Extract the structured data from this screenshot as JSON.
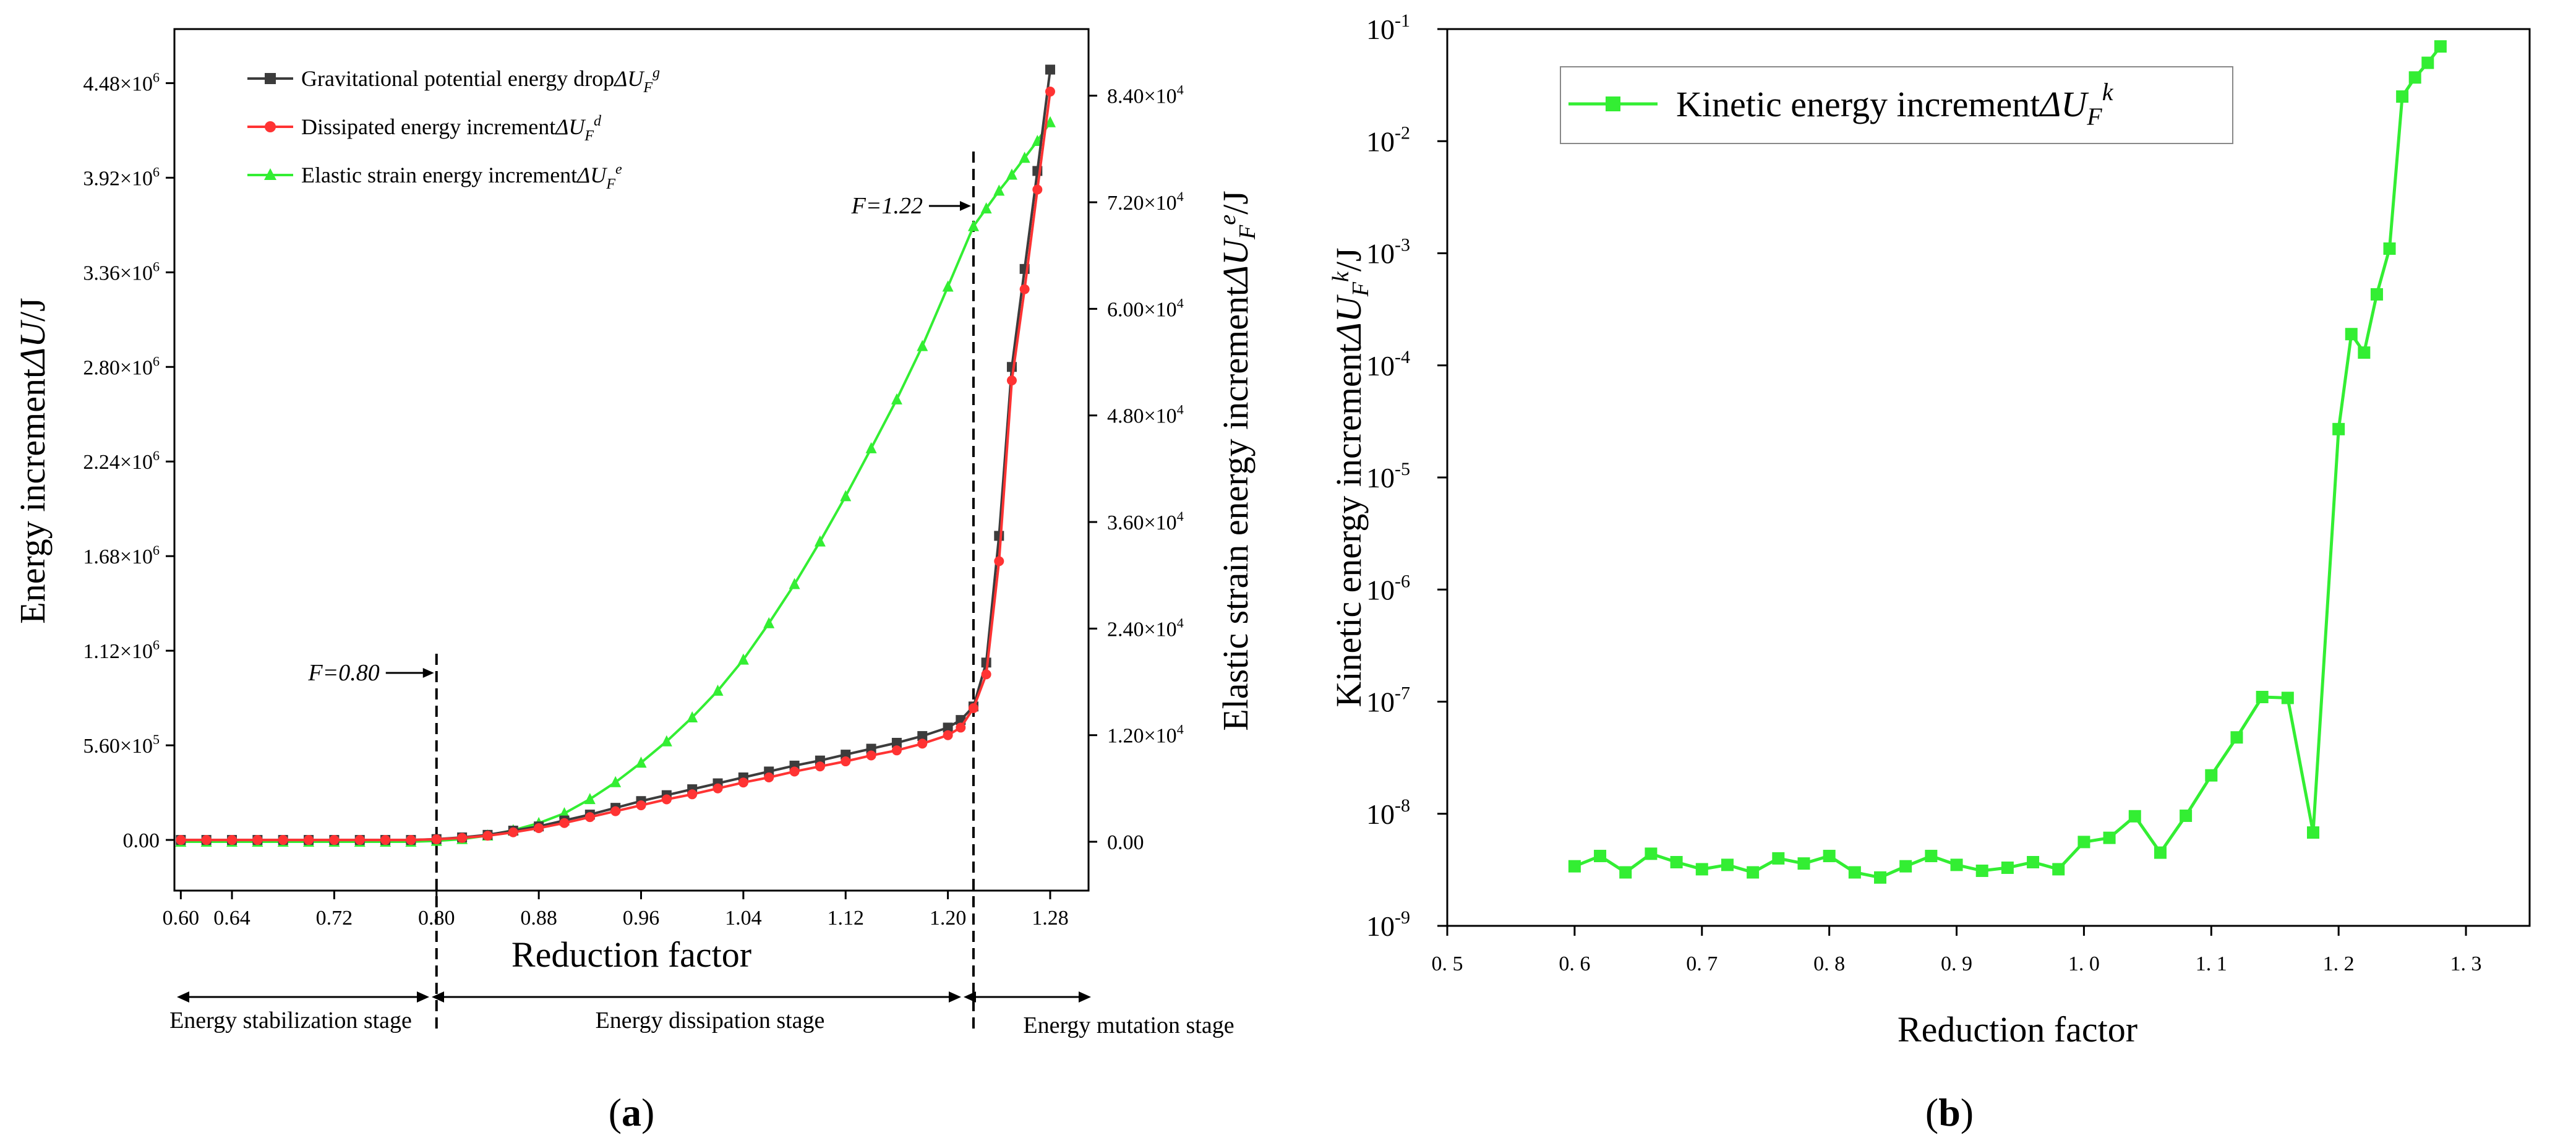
{
  "colors": {
    "gravity": "#3c3c3c",
    "dissipated": "#ff3333",
    "elastic": "#33ee33",
    "kinetic": "#33ee33",
    "axis": "#000000"
  },
  "panel_a": {
    "label_open": "(",
    "label_letter": "a",
    "label_close": ")"
  },
  "panel_b": {
    "label_open": "(",
    "label_letter": "b",
    "label_close": ")"
  },
  "chart_data": [
    {
      "type": "line",
      "panel": "a",
      "xlabel": "Reduction factor",
      "ylabel": "Energy increment",
      "ylabel_sym": "ΔU",
      "ylabel_unit": "/J",
      "y2label": "Elastic strain energy increment",
      "y2label_sym": "ΔU",
      "y2label_sub": "F",
      "y2label_sup": "e",
      "y2label_unit": "/J",
      "xlim": [
        0.595,
        1.31
      ],
      "ylim": [
        -300000,
        4800000
      ],
      "y2lim": [
        -5500,
        91500
      ],
      "x_ticks": [
        "0.60",
        "0.64",
        "0.72",
        "0.80",
        "0.88",
        "0.96",
        "1.04",
        "1.12",
        "1.20",
        "1.28"
      ],
      "x_tick_values": [
        0.6,
        0.64,
        0.72,
        0.8,
        0.88,
        0.96,
        1.04,
        1.12,
        1.2,
        1.28
      ],
      "y_ticks": [
        {
          "value": 0,
          "mant": "0.00",
          "exp": ""
        },
        {
          "value": 560000,
          "mant": "5.60×10",
          "exp": "5"
        },
        {
          "value": 1120000,
          "mant": "1.12×10",
          "exp": "6"
        },
        {
          "value": 1680000,
          "mant": "1.68×10",
          "exp": "6"
        },
        {
          "value": 2240000,
          "mant": "2.24×10",
          "exp": "6"
        },
        {
          "value": 2800000,
          "mant": "2.80×10",
          "exp": "6"
        },
        {
          "value": 3360000,
          "mant": "3.36×10",
          "exp": "6"
        },
        {
          "value": 3920000,
          "mant": "3.92×10",
          "exp": "6"
        },
        {
          "value": 4480000,
          "mant": "4.48×10",
          "exp": "6"
        }
      ],
      "y2_ticks": [
        {
          "value": 0,
          "mant": "0.00",
          "exp": ""
        },
        {
          "value": 12000,
          "mant": "1.20×10",
          "exp": "4"
        },
        {
          "value": 24000,
          "mant": "2.40×10",
          "exp": "4"
        },
        {
          "value": 36000,
          "mant": "3.60×10",
          "exp": "4"
        },
        {
          "value": 48000,
          "mant": "4.80×10",
          "exp": "4"
        },
        {
          "value": 60000,
          "mant": "6.00×10",
          "exp": "4"
        },
        {
          "value": 72000,
          "mant": "7.20×10",
          "exp": "4"
        },
        {
          "value": 84000,
          "mant": "8.40×10",
          "exp": "4"
        }
      ],
      "series": [
        {
          "name": "Gravitational potential energy drop",
          "sym": "ΔU",
          "sub": "F",
          "sup": "g",
          "axis": "left",
          "marker": "square",
          "color": "#3c3c3c",
          "x": [
            0.6,
            0.62,
            0.64,
            0.66,
            0.68,
            0.7,
            0.72,
            0.74,
            0.76,
            0.78,
            0.8,
            0.82,
            0.84,
            0.86,
            0.88,
            0.9,
            0.92,
            0.94,
            0.96,
            0.98,
            1.0,
            1.02,
            1.04,
            1.06,
            1.08,
            1.1,
            1.12,
            1.14,
            1.16,
            1.18,
            1.2,
            1.21,
            1.22,
            1.23,
            1.24,
            1.25,
            1.26,
            1.27,
            1.28
          ],
          "values": [
            0,
            0,
            0,
            0,
            0,
            0,
            0,
            0,
            0,
            0,
            5000,
            15000,
            30000,
            55000,
            80000,
            115000,
            150000,
            190000,
            230000,
            265000,
            300000,
            335000,
            370000,
            405000,
            440000,
            470000,
            505000,
            540000,
            575000,
            615000,
            665000,
            710000,
            790000,
            1050000,
            1800000,
            2800000,
            3380000,
            3960000,
            4560000
          ]
        },
        {
          "name": "Dissipated energy increment",
          "sym": "ΔU",
          "sub": "F",
          "sup": "d",
          "axis": "left",
          "marker": "circle",
          "color": "#ff3333",
          "x": [
            0.6,
            0.62,
            0.64,
            0.66,
            0.68,
            0.7,
            0.72,
            0.74,
            0.76,
            0.78,
            0.8,
            0.82,
            0.84,
            0.86,
            0.88,
            0.9,
            0.92,
            0.94,
            0.96,
            0.98,
            1.0,
            1.02,
            1.04,
            1.06,
            1.08,
            1.1,
            1.12,
            1.14,
            1.16,
            1.18,
            1.2,
            1.21,
            1.22,
            1.23,
            1.24,
            1.25,
            1.26,
            1.27,
            1.28
          ],
          "values": [
            0,
            0,
            0,
            0,
            0,
            0,
            0,
            0,
            0,
            0,
            4000,
            12000,
            25000,
            45000,
            70000,
            100000,
            135000,
            170000,
            205000,
            240000,
            270000,
            305000,
            340000,
            370000,
            405000,
            435000,
            465000,
            500000,
            530000,
            570000,
            620000,
            665000,
            780000,
            980000,
            1650000,
            2720000,
            3260000,
            3850000,
            4430000
          ]
        },
        {
          "name": "Elastic strain energy increment",
          "sym": "ΔU",
          "sub": "F",
          "sup": "e",
          "axis": "right",
          "marker": "triangle",
          "color": "#33ee33",
          "x": [
            0.6,
            0.62,
            0.64,
            0.66,
            0.68,
            0.7,
            0.72,
            0.74,
            0.76,
            0.78,
            0.8,
            0.82,
            0.84,
            0.86,
            0.88,
            0.9,
            0.92,
            0.94,
            0.96,
            0.98,
            1.0,
            1.02,
            1.04,
            1.06,
            1.08,
            1.1,
            1.12,
            1.14,
            1.16,
            1.18,
            1.2,
            1.22,
            1.23,
            1.24,
            1.25,
            1.26,
            1.27,
            1.28
          ],
          "values": [
            0,
            0,
            0,
            0,
            0,
            0,
            0,
            0,
            0,
            0,
            100,
            300,
            700,
            1300,
            2100,
            3200,
            4800,
            6700,
            8900,
            11300,
            14000,
            17000,
            20500,
            24600,
            29000,
            33800,
            38900,
            44300,
            49800,
            55800,
            62500,
            69300,
            71300,
            73300,
            75100,
            77000,
            78900,
            81000
          ]
        }
      ],
      "annotations": [
        {
          "label": "F=0.80",
          "x": 0.8
        },
        {
          "label": "F=1.22",
          "x": 1.22
        }
      ],
      "stages": [
        "Energy stabilization stage",
        "Energy dissipation stage",
        "Energy mutation stage"
      ]
    },
    {
      "type": "line",
      "panel": "b",
      "yscale": "log",
      "xlabel": "Reduction factor",
      "ylabel": "Kinetic energy increment",
      "ylabel_sym": "ΔU",
      "ylabel_sub": "F",
      "ylabel_sup": "k",
      "ylabel_unit": "/J",
      "xlim": [
        0.5,
        1.35
      ],
      "ylim_exp": [
        -9,
        -1
      ],
      "x_ticks": [
        "0. 5",
        "0. 6",
        "0. 7",
        "0. 8",
        "0. 9",
        "1. 0",
        "1. 1",
        "1. 2",
        "1. 3"
      ],
      "x_tick_values": [
        0.5,
        0.6,
        0.7,
        0.8,
        0.9,
        1.0,
        1.1,
        1.2,
        1.3
      ],
      "y_ticks": [
        {
          "exp_value": -9,
          "base": "10",
          "exp": "-9"
        },
        {
          "exp_value": -8,
          "base": "10",
          "exp": "-8"
        },
        {
          "exp_value": -7,
          "base": "10",
          "exp": "-7"
        },
        {
          "exp_value": -6,
          "base": "10",
          "exp": "-6"
        },
        {
          "exp_value": -5,
          "base": "10",
          "exp": "-5"
        },
        {
          "exp_value": -4,
          "base": "10",
          "exp": "-4"
        },
        {
          "exp_value": -3,
          "base": "10",
          "exp": "-3"
        },
        {
          "exp_value": -2,
          "base": "10",
          "exp": "-2"
        },
        {
          "exp_value": -1,
          "base": "10",
          "exp": "-1"
        }
      ],
      "series": [
        {
          "name": "Kinetic energy increment",
          "sym": "ΔU",
          "sub": "F",
          "sup": "k",
          "marker": "square",
          "color": "#33ee33",
          "x": [
            0.6,
            0.62,
            0.64,
            0.66,
            0.68,
            0.7,
            0.72,
            0.74,
            0.76,
            0.78,
            0.8,
            0.82,
            0.84,
            0.86,
            0.88,
            0.9,
            0.92,
            0.94,
            0.96,
            0.98,
            1.0,
            1.02,
            1.04,
            1.06,
            1.08,
            1.1,
            1.12,
            1.14,
            1.16,
            1.18,
            1.2,
            1.21,
            1.22,
            1.23,
            1.24,
            1.25,
            1.26,
            1.27,
            1.28
          ],
          "values": [
            3.4e-09,
            4.2e-09,
            3e-09,
            4.4e-09,
            3.7e-09,
            3.2e-09,
            3.5e-09,
            3e-09,
            4e-09,
            3.6e-09,
            4.2e-09,
            3e-09,
            2.7e-09,
            3.4e-09,
            4.2e-09,
            3.5e-09,
            3.1e-09,
            3.3e-09,
            3.7e-09,
            3.2e-09,
            5.6e-09,
            6.1e-09,
            9.5e-09,
            4.5e-09,
            9.6e-09,
            2.2e-08,
            4.8e-08,
            1.1e-07,
            1.08e-07,
            6.8e-09,
            2.7e-05,
            0.00019,
            0.00013,
            0.00043,
            0.0011,
            0.025,
            0.037,
            0.05,
            0.07
          ]
        }
      ]
    }
  ]
}
